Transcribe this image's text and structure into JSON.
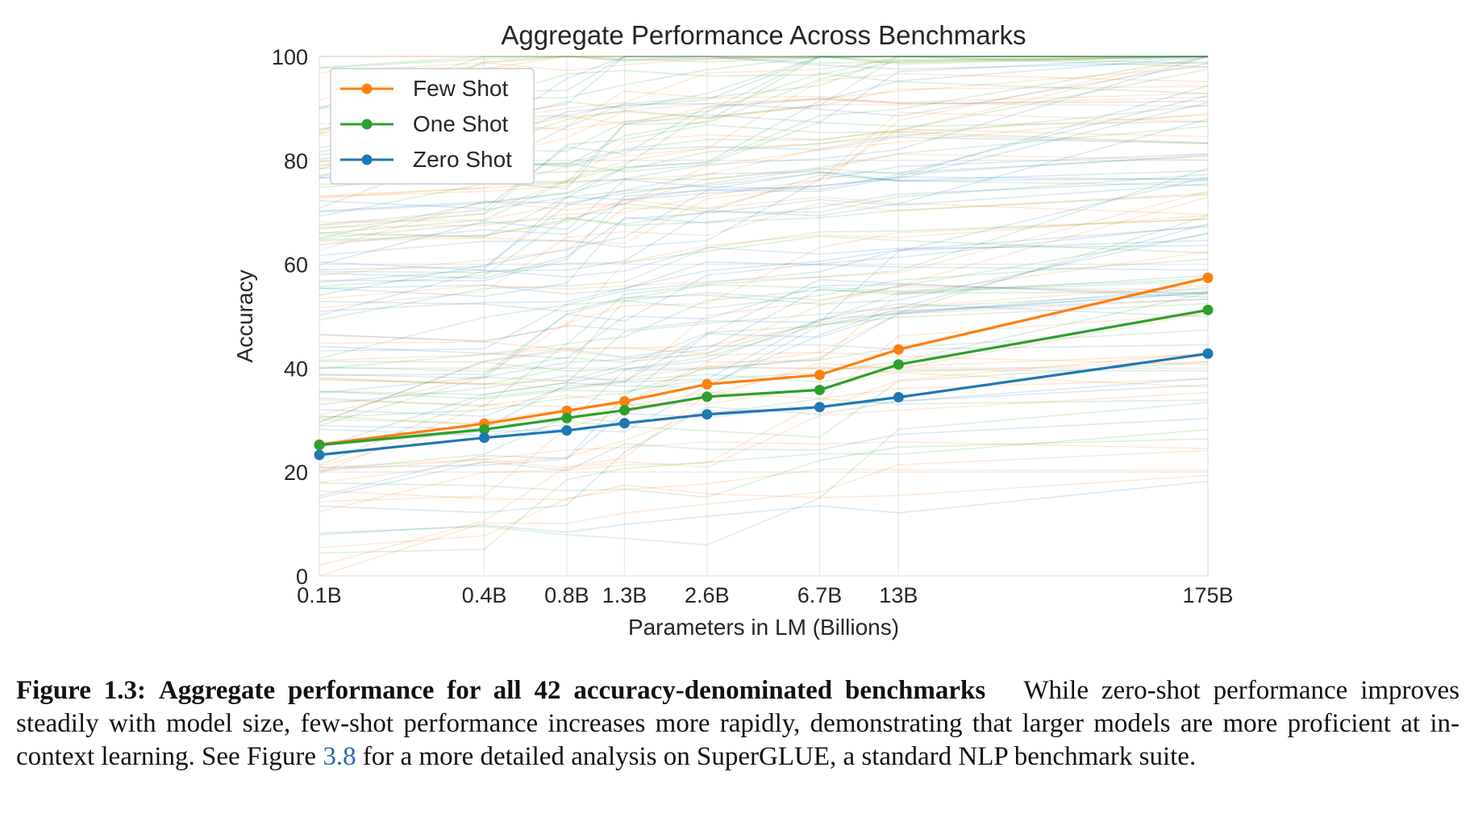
{
  "chart_data": {
    "type": "line",
    "title": "Aggregate Performance Across Benchmarks",
    "xlabel": "Parameters in LM (Billions)",
    "ylabel": "Accuracy",
    "x_scale": "log",
    "x": [
      0.1,
      0.4,
      0.8,
      1.3,
      2.6,
      6.7,
      13,
      175
    ],
    "x_tick_labels": [
      "0.1B",
      "0.4B",
      "0.8B",
      "1.3B",
      "2.6B",
      "6.7B",
      "13B",
      "175B"
    ],
    "y_ticks": [
      0,
      20,
      40,
      60,
      80,
      100
    ],
    "y_tick_labels": [
      "0",
      "20",
      "40",
      "60",
      "80",
      "100"
    ],
    "ylim": [
      0,
      100
    ],
    "grid": true,
    "legend_position": "top-left",
    "series": [
      {
        "name": "Few Shot",
        "color": "#ff7f0e",
        "values": [
          25.3,
          29.3,
          31.8,
          33.6,
          36.9,
          38.7,
          43.6,
          57.4
        ]
      },
      {
        "name": "One Shot",
        "color": "#2ca02c",
        "values": [
          25.2,
          28.2,
          30.4,
          31.9,
          34.5,
          35.8,
          40.7,
          51.2
        ]
      },
      {
        "name": "Zero Shot",
        "color": "#1f77b4",
        "values": [
          23.3,
          26.6,
          28.0,
          29.4,
          31.1,
          32.5,
          34.4,
          42.8
        ]
      }
    ],
    "background_lines_per_series": 42
  },
  "caption": {
    "label": "Figure 1.3:",
    "bold_title": "Aggregate performance for all 42 accuracy-denominated benchmarks",
    "text_before_link": "While zero-shot performance improves steadily with model size, few-shot performance increases more rapidly, demonstrating that larger models are more proficient at in-context learning. See Figure",
    "link_text": "3.8",
    "text_after_link": "for a more detailed analysis on SuperGLUE, a standard NLP benchmark suite."
  }
}
